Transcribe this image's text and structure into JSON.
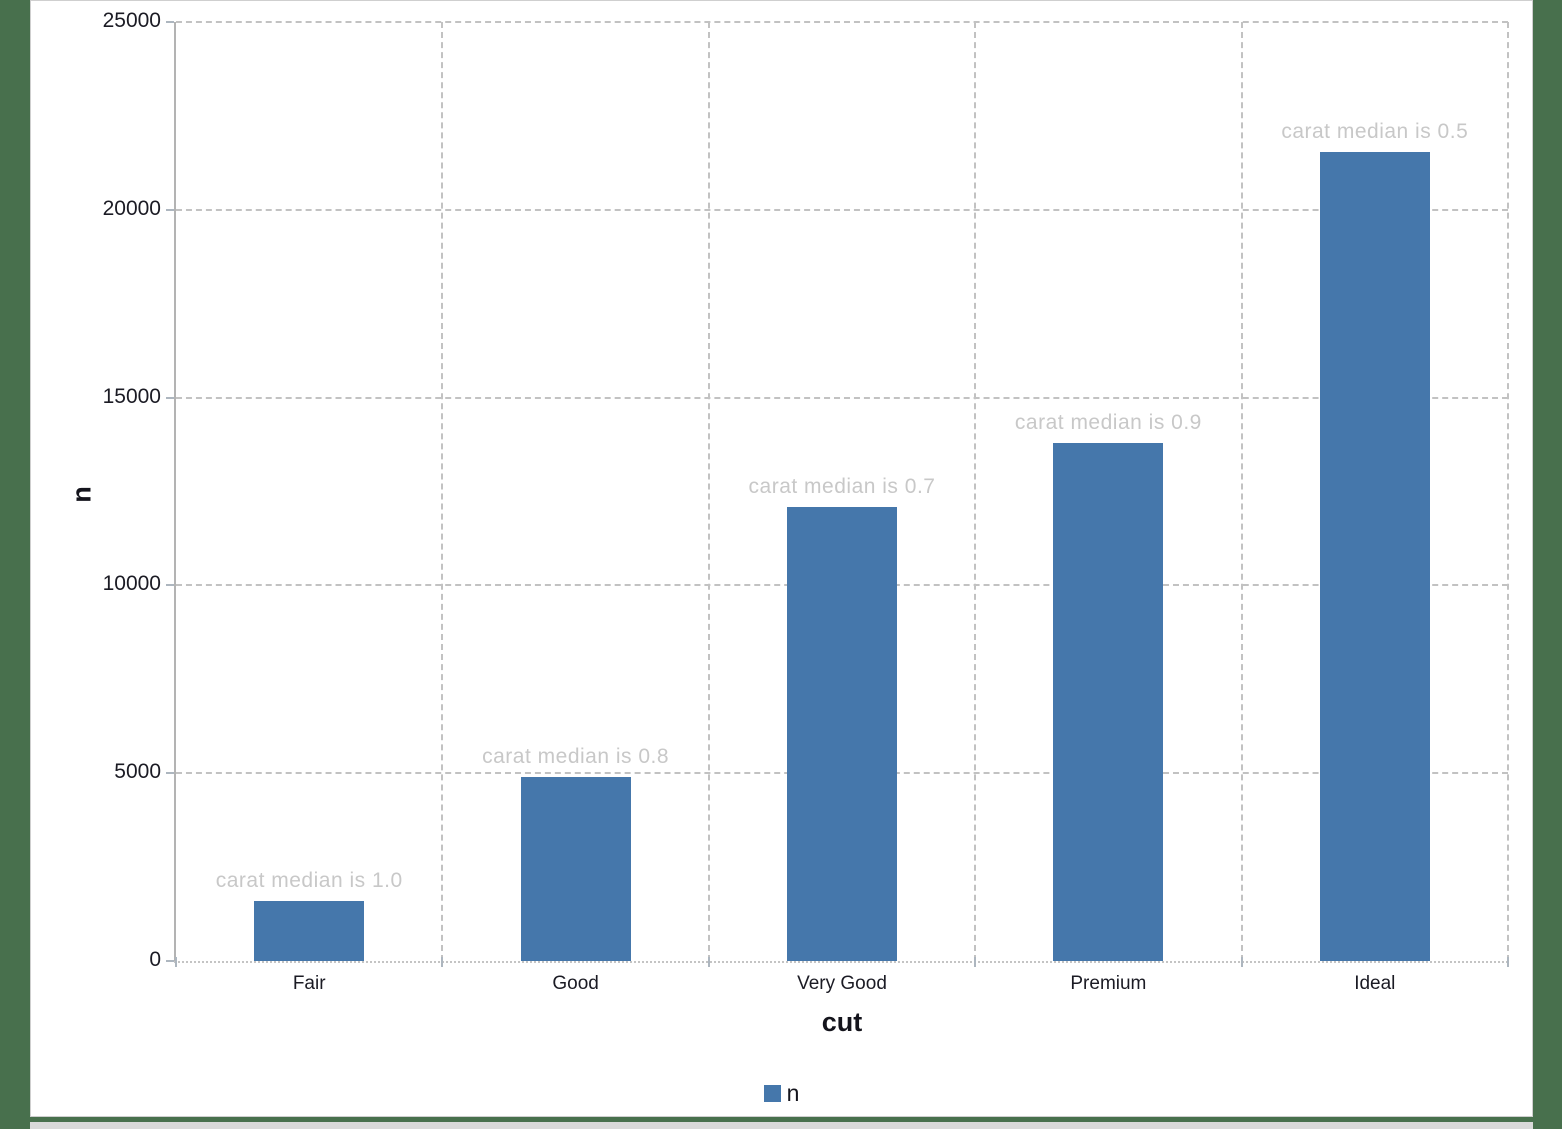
{
  "page": {
    "background_color": "#48704d",
    "card_background": "#ffffff",
    "card_border_color": "#cfcfcf"
  },
  "chart_data": {
    "type": "bar",
    "title": "",
    "categories": [
      "Fair",
      "Good",
      "Very Good",
      "Premium",
      "Ideal"
    ],
    "series": [
      {
        "name": "n",
        "values": [
          1610,
          4906,
          12082,
          13791,
          21551
        ]
      }
    ],
    "annotations": [
      "carat median is 1.0",
      "carat median is 0.8",
      "carat median is 0.7",
      "carat median is 0.9",
      "carat median is 0.5"
    ],
    "xlabel": "cut",
    "ylabel": "n",
    "ylim": [
      0,
      25000
    ],
    "yticks": [
      0,
      5000,
      10000,
      15000,
      20000,
      25000
    ],
    "ytick_labels": [
      "0",
      "5000",
      "10000",
      "15000",
      "20000",
      "25000"
    ],
    "grid": true,
    "legend": {
      "position": "bottom",
      "entries": [
        "n"
      ]
    },
    "colors": {
      "bar": "#4577ab",
      "annotation": "#c8c8c8",
      "tick_label": "#1b1b24",
      "gridline": "#c2c2c2",
      "axis": "#b3b3b3"
    }
  }
}
